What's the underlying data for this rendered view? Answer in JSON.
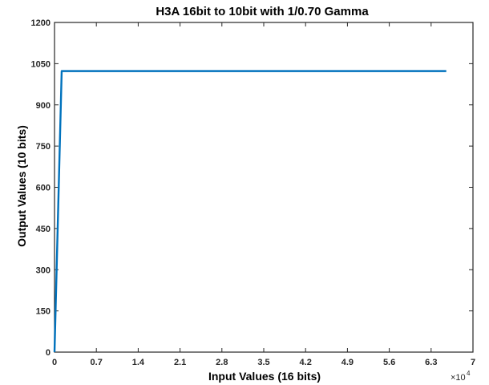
{
  "chart_data": {
    "type": "line",
    "title": "H3A 16bit to 10bit with 1/0.70 Gamma",
    "xlabel": "Input Values (16 bits)",
    "ylabel": "Output Values (10 bits)",
    "x_exponent_base": "×10",
    "x_exponent_power": "4",
    "x_tick_labels": [
      "0",
      "0.7",
      "1.4",
      "2.1",
      "2.8",
      "3.5",
      "4.2",
      "4.9",
      "5.6",
      "6.3",
      "7"
    ],
    "y_tick_labels": [
      "0",
      "150",
      "300",
      "450",
      "600",
      "750",
      "900",
      "1050",
      "1200"
    ],
    "xlim": [
      0,
      70000
    ],
    "ylim": [
      0,
      1200
    ],
    "grid": false,
    "line_color": "#0072BD",
    "axis_color": "#262626",
    "series": [
      {
        "x": [
          0,
          1200,
          65535
        ],
        "y": [
          0,
          1023,
          1023
        ]
      }
    ]
  }
}
